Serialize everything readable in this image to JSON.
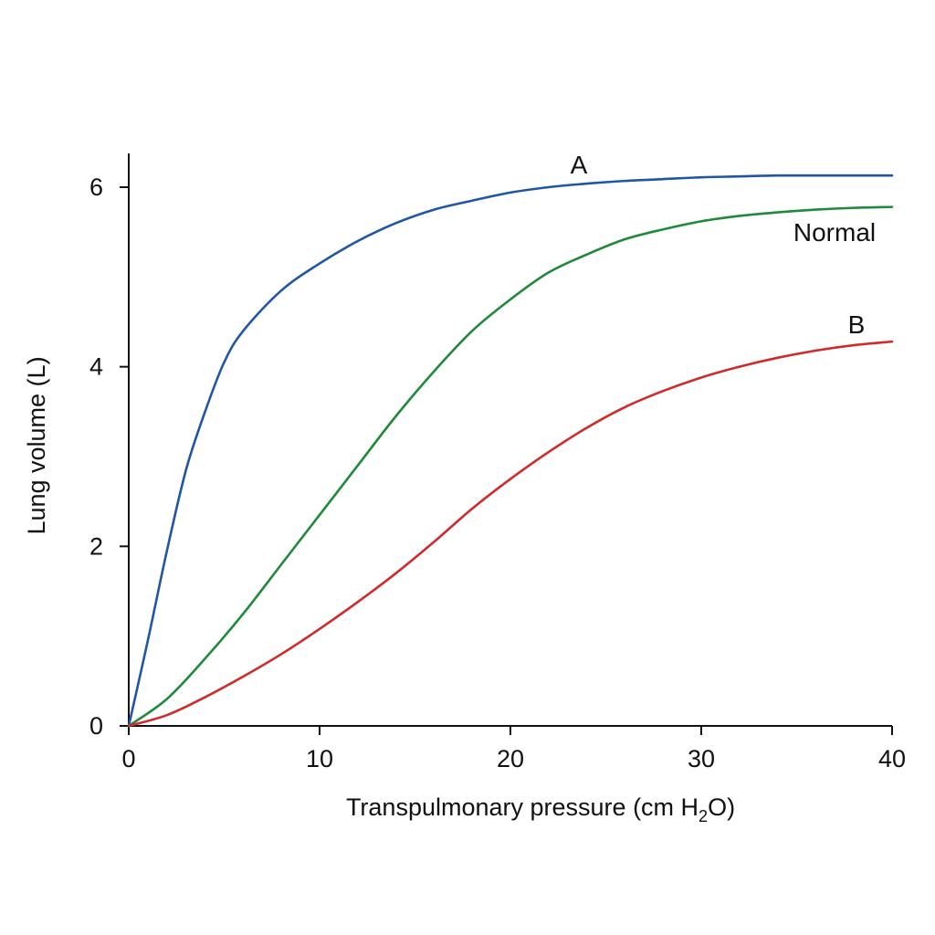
{
  "chart_data": {
    "type": "line",
    "title": "",
    "xlabel": "Transpulmonary pressure (cm H",
    "xlabel_subscript": "2",
    "xlabel_suffix": "O)",
    "ylabel": "Lung volume (L)",
    "xlim": [
      0,
      40
    ],
    "ylim": [
      0,
      6
    ],
    "x_ticks": [
      "0",
      "10",
      "20",
      "30",
      "40"
    ],
    "y_ticks": [
      "0",
      "2",
      "4",
      "6"
    ],
    "grid": false,
    "legend": "none",
    "series": [
      {
        "name": "A",
        "color": "#1f56a6",
        "x": [
          0,
          1,
          2,
          3,
          4,
          5,
          6,
          8,
          10,
          12,
          14,
          16,
          18,
          20,
          22,
          24,
          26,
          28,
          30,
          32,
          34,
          36,
          38,
          40
        ],
        "y": [
          0,
          0.95,
          1.95,
          2.85,
          3.5,
          4.05,
          4.4,
          4.85,
          5.15,
          5.4,
          5.6,
          5.75,
          5.85,
          5.94,
          6.0,
          6.04,
          6.07,
          6.09,
          6.11,
          6.12,
          6.13,
          6.13,
          6.13,
          6.13
        ]
      },
      {
        "name": "Normal",
        "color": "#1f8a3b",
        "x": [
          0,
          2,
          4,
          6,
          8,
          10,
          12,
          14,
          16,
          18,
          20,
          22,
          24,
          26,
          28,
          30,
          32,
          34,
          36,
          38,
          40
        ],
        "y": [
          0,
          0.3,
          0.75,
          1.25,
          1.8,
          2.35,
          2.9,
          3.45,
          3.95,
          4.4,
          4.75,
          5.05,
          5.25,
          5.42,
          5.53,
          5.62,
          5.68,
          5.72,
          5.75,
          5.77,
          5.78
        ]
      },
      {
        "name": "B",
        "color": "#d12a2a",
        "x": [
          0,
          2,
          4,
          6,
          8,
          10,
          12,
          14,
          16,
          18,
          20,
          22,
          24,
          26,
          28,
          30,
          32,
          34,
          36,
          38,
          40
        ],
        "y": [
          0,
          0.12,
          0.32,
          0.55,
          0.8,
          1.08,
          1.38,
          1.7,
          2.05,
          2.42,
          2.75,
          3.05,
          3.32,
          3.55,
          3.73,
          3.88,
          4.0,
          4.1,
          4.18,
          4.24,
          4.28
        ]
      }
    ]
  }
}
